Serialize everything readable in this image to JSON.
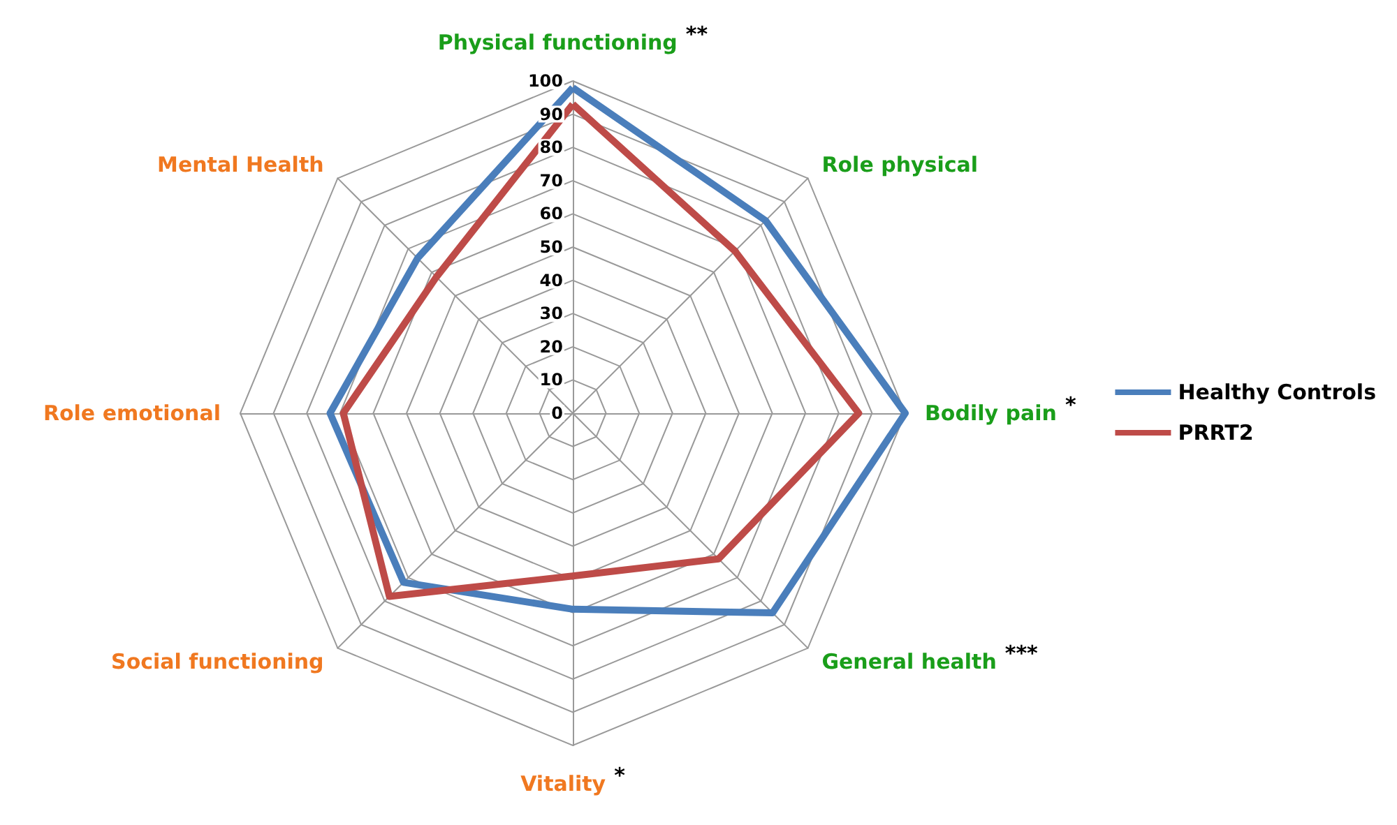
{
  "chart_data": {
    "type": "radar",
    "categories": [
      "Physical functioning",
      "Role physical",
      "Bodily pain",
      "General health",
      "Vitality",
      "Social functioning",
      "Role emotional",
      "Mental Health"
    ],
    "colors": [
      "#1a9e1a",
      "#1a9e1a",
      "#1a9e1a",
      "#1a9e1a",
      "#f07820",
      "#f07820",
      "#f07820",
      "#f07820"
    ],
    "series": [
      {
        "name": "Healthy Controls",
        "color": "#4a7ebb",
        "values": [
          98,
          82,
          100,
          85,
          59,
          72,
          73,
          66
        ]
      },
      {
        "name": "PRRT2",
        "color": "#be4b48",
        "values": [
          93,
          69,
          86,
          62,
          49,
          78,
          69,
          58
        ]
      }
    ],
    "ylim": [
      0,
      100
    ],
    "yticks": [
      0,
      10,
      20,
      30,
      40,
      50,
      60,
      70,
      80,
      90,
      100
    ],
    "annotations": [
      {
        "text": "**",
        "x": "Physical functioning"
      },
      {
        "text": "*",
        "x": "Bodily pain"
      },
      {
        "text": "***",
        "x": "General health"
      },
      {
        "text": "*",
        "x": "Vitality"
      }
    ],
    "legend": "right",
    "marker": "none",
    "line_style": "solid"
  }
}
